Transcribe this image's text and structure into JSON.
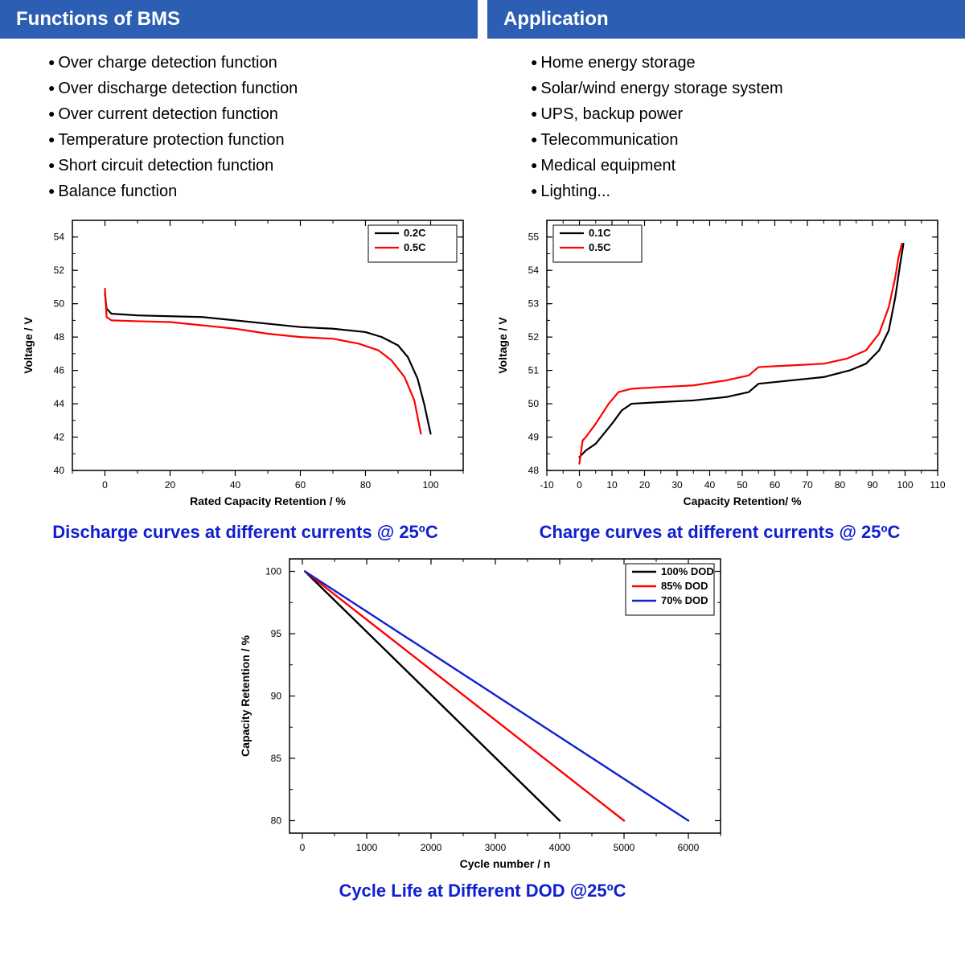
{
  "colors": {
    "header_bg": "#2c5fb3",
    "header_text": "#ffffff",
    "caption_text": "#1020d0",
    "axis": "#000000",
    "grid": "#d8d8d8",
    "series_black": "#000000",
    "series_red": "#ff0000",
    "series_blue": "#1020d0"
  },
  "left_panel": {
    "title": "Functions of BMS",
    "items": [
      "Over charge detection function",
      "Over discharge detection function",
      "Over current detection function",
      "Temperature protection function",
      "Short circuit detection function",
      "Balance function"
    ]
  },
  "right_panel": {
    "title": "Application",
    "items": [
      "Home energy storage",
      "Solar/wind energy storage system",
      "UPS, backup power",
      "Telecommunication",
      "Medical equipment",
      "Lighting..."
    ]
  },
  "discharge_chart": {
    "type": "line",
    "caption": "Discharge curves at different currents @ 25ºC",
    "xlabel": "Rated Capacity Retention / %",
    "ylabel": "Voltage / V",
    "xlim": [
      -10,
      110
    ],
    "xtick_step": 20,
    "xtick_start": 0,
    "xtick_end": 100,
    "ylim": [
      40,
      55
    ],
    "ytick_step": 2,
    "ytick_start": 40,
    "ytick_end": 54,
    "minor_ticks": true,
    "legend_pos": "top-right",
    "series": [
      {
        "label": "0.2C",
        "color": "#000000",
        "width": 2.2,
        "points": [
          [
            0,
            50.6
          ],
          [
            0.5,
            49.7
          ],
          [
            2,
            49.4
          ],
          [
            10,
            49.3
          ],
          [
            20,
            49.25
          ],
          [
            30,
            49.2
          ],
          [
            40,
            49.0
          ],
          [
            50,
            48.8
          ],
          [
            60,
            48.6
          ],
          [
            70,
            48.5
          ],
          [
            80,
            48.3
          ],
          [
            85,
            48.0
          ],
          [
            90,
            47.5
          ],
          [
            93,
            46.8
          ],
          [
            96,
            45.5
          ],
          [
            98,
            44.0
          ],
          [
            100,
            42.2
          ]
        ]
      },
      {
        "label": "0.5C",
        "color": "#ff0000",
        "width": 2.2,
        "points": [
          [
            0,
            50.9
          ],
          [
            0.5,
            49.2
          ],
          [
            2,
            49.0
          ],
          [
            10,
            48.95
          ],
          [
            20,
            48.9
          ],
          [
            30,
            48.7
          ],
          [
            40,
            48.5
          ],
          [
            50,
            48.2
          ],
          [
            60,
            48.0
          ],
          [
            70,
            47.9
          ],
          [
            78,
            47.6
          ],
          [
            84,
            47.2
          ],
          [
            88,
            46.6
          ],
          [
            92,
            45.6
          ],
          [
            95,
            44.2
          ],
          [
            97,
            42.2
          ]
        ]
      }
    ]
  },
  "charge_chart": {
    "type": "line",
    "caption": "Charge curves at different currents @ 25ºC",
    "xlabel": "Capacity Retention/ %",
    "ylabel": "Voltage / V",
    "xlim": [
      -10,
      110
    ],
    "xtick_step": 10,
    "xtick_start": -10,
    "xtick_end": 110,
    "ylim": [
      48,
      55.5
    ],
    "ytick_step": 1,
    "ytick_start": 48,
    "ytick_end": 55,
    "minor_ticks": true,
    "legend_pos": "top-left",
    "series": [
      {
        "label": "0.1C",
        "color": "#000000",
        "width": 2.2,
        "points": [
          [
            0,
            48.4
          ],
          [
            2,
            48.6
          ],
          [
            5,
            48.8
          ],
          [
            10,
            49.4
          ],
          [
            13,
            49.8
          ],
          [
            16,
            50.0
          ],
          [
            25,
            50.05
          ],
          [
            35,
            50.1
          ],
          [
            45,
            50.2
          ],
          [
            52,
            50.35
          ],
          [
            55,
            50.6
          ],
          [
            65,
            50.7
          ],
          [
            75,
            50.8
          ],
          [
            83,
            51.0
          ],
          [
            88,
            51.2
          ],
          [
            92,
            51.6
          ],
          [
            95,
            52.2
          ],
          [
            97,
            53.2
          ],
          [
            98.5,
            54.2
          ],
          [
            99.5,
            54.8
          ]
        ]
      },
      {
        "label": "0.5C",
        "color": "#ff0000",
        "width": 2.2,
        "points": [
          [
            0,
            48.2
          ],
          [
            1,
            48.9
          ],
          [
            2,
            49.0
          ],
          [
            5,
            49.4
          ],
          [
            9,
            50.0
          ],
          [
            12,
            50.35
          ],
          [
            16,
            50.45
          ],
          [
            25,
            50.5
          ],
          [
            35,
            50.55
          ],
          [
            45,
            50.7
          ],
          [
            52,
            50.85
          ],
          [
            55,
            51.1
          ],
          [
            65,
            51.15
          ],
          [
            75,
            51.2
          ],
          [
            82,
            51.35
          ],
          [
            88,
            51.6
          ],
          [
            92,
            52.1
          ],
          [
            95,
            52.9
          ],
          [
            97,
            53.8
          ],
          [
            98,
            54.4
          ],
          [
            99,
            54.8
          ]
        ]
      }
    ]
  },
  "cycle_chart": {
    "type": "line",
    "caption": "Cycle Life at Different DOD @25ºC",
    "xlabel": "Cycle number / n",
    "ylabel": "Capacity Retention / %",
    "xlim": [
      -200,
      6500
    ],
    "xtick_step": 1000,
    "xtick_start": 0,
    "xtick_end": 6000,
    "ylim": [
      79,
      101
    ],
    "ytick_step": 5,
    "ytick_start": 80,
    "ytick_end": 100,
    "minor_ticks": true,
    "legend_pos": "top-right",
    "series": [
      {
        "label": "100% DOD",
        "color": "#000000",
        "width": 2.4,
        "points": [
          [
            40,
            100
          ],
          [
            4000,
            80
          ]
        ]
      },
      {
        "label": "85% DOD",
        "color": "#ff0000",
        "width": 2.4,
        "points": [
          [
            40,
            100
          ],
          [
            5000,
            80
          ]
        ]
      },
      {
        "label": "70% DOD",
        "color": "#1020d0",
        "width": 2.4,
        "points": [
          [
            40,
            100
          ],
          [
            6000,
            80
          ]
        ]
      }
    ]
  }
}
